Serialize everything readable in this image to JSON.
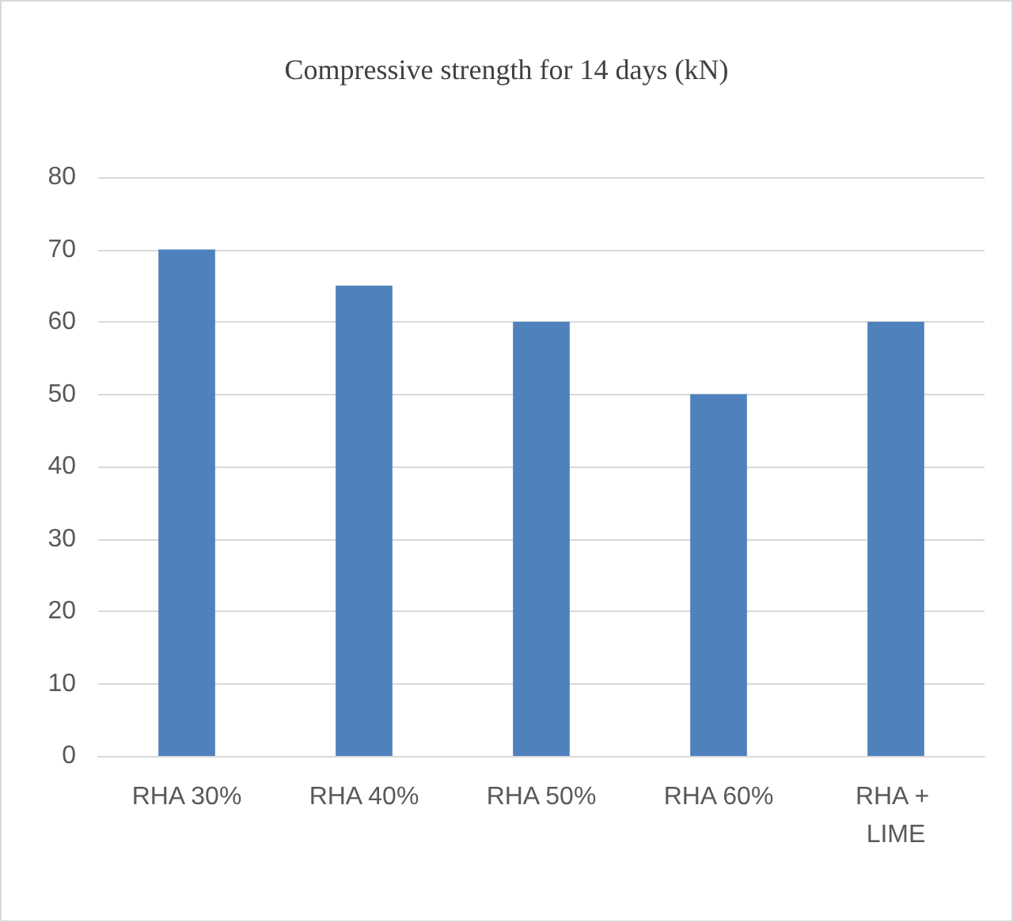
{
  "chart_data": {
    "type": "bar",
    "title": "Compressive strength for 14 days (kN)",
    "categories": [
      "RHA 30%",
      "RHA 40%",
      "RHA 50%",
      "RHA 60%",
      "RHA + LIME"
    ],
    "values": [
      70,
      65,
      60,
      50,
      60
    ],
    "color": "#4f81bd",
    "ylim": [
      0,
      80
    ],
    "yticks": [
      0,
      10,
      20,
      30,
      40,
      50,
      60,
      70,
      80
    ],
    "grid": "y"
  }
}
